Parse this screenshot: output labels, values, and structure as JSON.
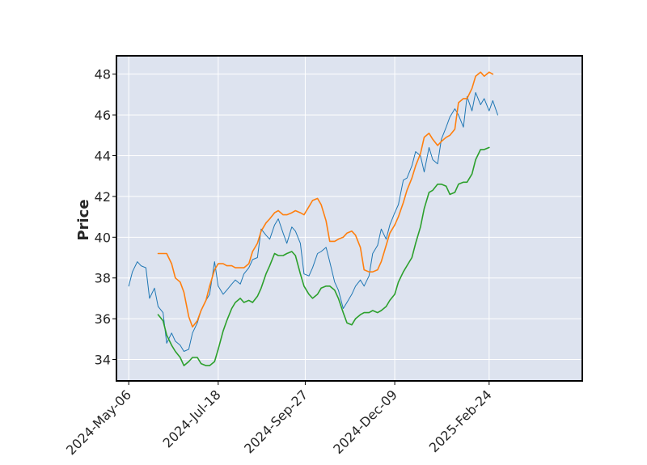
{
  "chart_data": {
    "type": "line",
    "title": "",
    "xlabel": "",
    "ylabel": "Price",
    "x_tick_labels": [
      "2024-May-06",
      "2024-Jul-18",
      "2024-Sep-27",
      "2024-Dec-09",
      "2025-Feb-24"
    ],
    "x_tick_dates": [
      "2024-05-06",
      "2024-07-18",
      "2024-09-27",
      "2024-12-09",
      "2025-02-24"
    ],
    "xlim": [
      "2024-04-26",
      "2025-05-11"
    ],
    "y_ticks": [
      34,
      36,
      38,
      40,
      42,
      44,
      46,
      48
    ],
    "ylim": [
      32.95,
      48.9
    ],
    "grid": true,
    "legend": "none",
    "colors": {
      "background": "#dde3ef",
      "grid": "#ffffff",
      "frame": "#000000",
      "close": "#1f77b4",
      "upper": "#ff7f0e",
      "lower": "#2ca02c"
    },
    "series": [
      {
        "color": "#1f77b4",
        "points": [
          [
            "2024-05-06",
            37.6
          ],
          [
            "2024-05-09",
            38.3
          ],
          [
            "2024-05-13",
            38.8
          ],
          [
            "2024-05-16",
            38.6
          ],
          [
            "2024-05-20",
            38.5
          ],
          [
            "2024-05-23",
            37.0
          ],
          [
            "2024-05-27",
            37.5
          ],
          [
            "2024-05-30",
            36.6
          ],
          [
            "2024-06-03",
            36.3
          ],
          [
            "2024-06-06",
            34.8
          ],
          [
            "2024-06-10",
            35.3
          ],
          [
            "2024-06-13",
            34.9
          ],
          [
            "2024-06-17",
            34.7
          ],
          [
            "2024-06-20",
            34.4
          ],
          [
            "2024-06-24",
            34.5
          ],
          [
            "2024-06-27",
            35.3
          ],
          [
            "2024-07-01",
            35.8
          ],
          [
            "2024-07-04",
            36.4
          ],
          [
            "2024-07-08",
            36.9
          ],
          [
            "2024-07-11",
            37.2
          ],
          [
            "2024-07-15",
            38.8
          ],
          [
            "2024-07-18",
            37.6
          ],
          [
            "2024-07-22",
            37.2
          ],
          [
            "2024-07-25",
            37.4
          ],
          [
            "2024-07-29",
            37.7
          ],
          [
            "2024-08-01",
            37.9
          ],
          [
            "2024-08-05",
            37.7
          ],
          [
            "2024-08-08",
            38.2
          ],
          [
            "2024-08-12",
            38.5
          ],
          [
            "2024-08-15",
            38.9
          ],
          [
            "2024-08-19",
            39.0
          ],
          [
            "2024-08-22",
            40.4
          ],
          [
            "2024-08-26",
            40.1
          ],
          [
            "2024-08-29",
            39.9
          ],
          [
            "2024-09-02",
            40.6
          ],
          [
            "2024-09-05",
            40.9
          ],
          [
            "2024-09-09",
            40.2
          ],
          [
            "2024-09-12",
            39.7
          ],
          [
            "2024-09-16",
            40.5
          ],
          [
            "2024-09-19",
            40.3
          ],
          [
            "2024-09-23",
            39.7
          ],
          [
            "2024-09-26",
            38.2
          ],
          [
            "2024-09-30",
            38.1
          ],
          [
            "2024-10-03",
            38.5
          ],
          [
            "2024-10-07",
            39.2
          ],
          [
            "2024-10-10",
            39.3
          ],
          [
            "2024-10-14",
            39.5
          ],
          [
            "2024-10-17",
            38.8
          ],
          [
            "2024-10-21",
            37.8
          ],
          [
            "2024-10-24",
            37.4
          ],
          [
            "2024-10-28",
            36.5
          ],
          [
            "2024-10-31",
            36.8
          ],
          [
            "2024-11-04",
            37.2
          ],
          [
            "2024-11-07",
            37.6
          ],
          [
            "2024-11-11",
            37.9
          ],
          [
            "2024-11-14",
            37.6
          ],
          [
            "2024-11-18",
            38.1
          ],
          [
            "2024-11-21",
            39.2
          ],
          [
            "2024-11-25",
            39.6
          ],
          [
            "2024-11-28",
            40.4
          ],
          [
            "2024-12-02",
            39.9
          ],
          [
            "2024-12-05",
            40.6
          ],
          [
            "2024-12-09",
            41.2
          ],
          [
            "2024-12-12",
            41.6
          ],
          [
            "2024-12-16",
            42.8
          ],
          [
            "2024-12-19",
            42.9
          ],
          [
            "2024-12-23",
            43.5
          ],
          [
            "2024-12-26",
            44.2
          ],
          [
            "2024-12-30",
            44.0
          ],
          [
            "2025-01-02",
            43.2
          ],
          [
            "2025-01-06",
            44.4
          ],
          [
            "2025-01-09",
            43.8
          ],
          [
            "2025-01-13",
            43.6
          ],
          [
            "2025-01-16",
            44.8
          ],
          [
            "2025-01-20",
            45.4
          ],
          [
            "2025-01-23",
            45.9
          ],
          [
            "2025-01-27",
            46.3
          ],
          [
            "2025-01-30",
            46.0
          ],
          [
            "2025-02-03",
            45.4
          ],
          [
            "2025-02-06",
            46.9
          ],
          [
            "2025-02-10",
            46.2
          ],
          [
            "2025-02-13",
            47.1
          ],
          [
            "2025-02-17",
            46.5
          ],
          [
            "2025-02-20",
            46.8
          ],
          [
            "2025-02-24",
            46.2
          ],
          [
            "2025-02-27",
            46.7
          ],
          [
            "2025-03-03",
            46.0
          ]
        ]
      },
      {
        "color": "#ff7f0e",
        "points": [
          [
            "2024-05-30",
            39.2
          ],
          [
            "2024-06-03",
            39.2
          ],
          [
            "2024-06-06",
            39.2
          ],
          [
            "2024-06-10",
            38.7
          ],
          [
            "2024-06-13",
            38.0
          ],
          [
            "2024-06-17",
            37.8
          ],
          [
            "2024-06-20",
            37.3
          ],
          [
            "2024-06-24",
            36.1
          ],
          [
            "2024-06-27",
            35.6
          ],
          [
            "2024-07-01",
            35.9
          ],
          [
            "2024-07-04",
            36.4
          ],
          [
            "2024-07-08",
            36.9
          ],
          [
            "2024-07-11",
            37.6
          ],
          [
            "2024-07-15",
            38.4
          ],
          [
            "2024-07-18",
            38.7
          ],
          [
            "2024-07-22",
            38.7
          ],
          [
            "2024-07-25",
            38.6
          ],
          [
            "2024-07-29",
            38.6
          ],
          [
            "2024-08-01",
            38.5
          ],
          [
            "2024-08-05",
            38.5
          ],
          [
            "2024-08-08",
            38.5
          ],
          [
            "2024-08-12",
            38.7
          ],
          [
            "2024-08-15",
            39.3
          ],
          [
            "2024-08-19",
            39.7
          ],
          [
            "2024-08-22",
            40.3
          ],
          [
            "2024-08-26",
            40.7
          ],
          [
            "2024-08-29",
            40.9
          ],
          [
            "2024-09-02",
            41.2
          ],
          [
            "2024-09-05",
            41.3
          ],
          [
            "2024-09-09",
            41.1
          ],
          [
            "2024-09-12",
            41.1
          ],
          [
            "2024-09-16",
            41.2
          ],
          [
            "2024-09-19",
            41.3
          ],
          [
            "2024-09-23",
            41.2
          ],
          [
            "2024-09-26",
            41.1
          ],
          [
            "2024-09-30",
            41.5
          ],
          [
            "2024-10-03",
            41.8
          ],
          [
            "2024-10-07",
            41.9
          ],
          [
            "2024-10-10",
            41.6
          ],
          [
            "2024-10-14",
            40.8
          ],
          [
            "2024-10-17",
            39.8
          ],
          [
            "2024-10-21",
            39.8
          ],
          [
            "2024-10-24",
            39.9
          ],
          [
            "2024-10-28",
            40.0
          ],
          [
            "2024-10-31",
            40.2
          ],
          [
            "2024-11-04",
            40.3
          ],
          [
            "2024-11-07",
            40.1
          ],
          [
            "2024-11-11",
            39.5
          ],
          [
            "2024-11-14",
            38.4
          ],
          [
            "2024-11-18",
            38.3
          ],
          [
            "2024-11-21",
            38.3
          ],
          [
            "2024-11-25",
            38.4
          ],
          [
            "2024-11-28",
            38.8
          ],
          [
            "2024-12-02",
            39.6
          ],
          [
            "2024-12-05",
            40.2
          ],
          [
            "2024-12-09",
            40.6
          ],
          [
            "2024-12-12",
            41.0
          ],
          [
            "2024-12-16",
            41.7
          ],
          [
            "2024-12-19",
            42.3
          ],
          [
            "2024-12-23",
            42.9
          ],
          [
            "2024-12-26",
            43.5
          ],
          [
            "2024-12-30",
            44.1
          ],
          [
            "2025-01-02",
            44.9
          ],
          [
            "2025-01-06",
            45.1
          ],
          [
            "2025-01-09",
            44.8
          ],
          [
            "2025-01-13",
            44.5
          ],
          [
            "2025-01-16",
            44.7
          ],
          [
            "2025-01-20",
            44.9
          ],
          [
            "2025-01-23",
            45.0
          ],
          [
            "2025-01-27",
            45.3
          ],
          [
            "2025-01-30",
            46.6
          ],
          [
            "2025-02-03",
            46.8
          ],
          [
            "2025-02-06",
            46.8
          ],
          [
            "2025-02-10",
            47.3
          ],
          [
            "2025-02-13",
            47.9
          ],
          [
            "2025-02-17",
            48.1
          ],
          [
            "2025-02-20",
            47.9
          ],
          [
            "2025-02-24",
            48.1
          ],
          [
            "2025-02-27",
            48.0
          ]
        ]
      },
      {
        "color": "#2ca02c",
        "points": [
          [
            "2024-05-30",
            36.2
          ],
          [
            "2024-06-03",
            35.9
          ],
          [
            "2024-06-06",
            35.2
          ],
          [
            "2024-06-10",
            34.7
          ],
          [
            "2024-06-13",
            34.4
          ],
          [
            "2024-06-17",
            34.1
          ],
          [
            "2024-06-20",
            33.7
          ],
          [
            "2024-06-24",
            33.9
          ],
          [
            "2024-06-27",
            34.1
          ],
          [
            "2024-07-01",
            34.1
          ],
          [
            "2024-07-04",
            33.8
          ],
          [
            "2024-07-08",
            33.7
          ],
          [
            "2024-07-11",
            33.7
          ],
          [
            "2024-07-15",
            33.9
          ],
          [
            "2024-07-18",
            34.5
          ],
          [
            "2024-07-22",
            35.4
          ],
          [
            "2024-07-25",
            35.9
          ],
          [
            "2024-07-29",
            36.5
          ],
          [
            "2024-08-01",
            36.8
          ],
          [
            "2024-08-05",
            37.0
          ],
          [
            "2024-08-08",
            36.8
          ],
          [
            "2024-08-12",
            36.9
          ],
          [
            "2024-08-15",
            36.8
          ],
          [
            "2024-08-19",
            37.1
          ],
          [
            "2024-08-22",
            37.5
          ],
          [
            "2024-08-26",
            38.2
          ],
          [
            "2024-08-29",
            38.6
          ],
          [
            "2024-09-02",
            39.2
          ],
          [
            "2024-09-05",
            39.1
          ],
          [
            "2024-09-09",
            39.1
          ],
          [
            "2024-09-12",
            39.2
          ],
          [
            "2024-09-16",
            39.3
          ],
          [
            "2024-09-19",
            39.1
          ],
          [
            "2024-09-23",
            38.2
          ],
          [
            "2024-09-26",
            37.6
          ],
          [
            "2024-09-30",
            37.2
          ],
          [
            "2024-10-03",
            37.0
          ],
          [
            "2024-10-07",
            37.2
          ],
          [
            "2024-10-10",
            37.5
          ],
          [
            "2024-10-14",
            37.6
          ],
          [
            "2024-10-17",
            37.6
          ],
          [
            "2024-10-21",
            37.4
          ],
          [
            "2024-10-24",
            37.0
          ],
          [
            "2024-10-28",
            36.3
          ],
          [
            "2024-10-31",
            35.8
          ],
          [
            "2024-11-04",
            35.7
          ],
          [
            "2024-11-07",
            36.0
          ],
          [
            "2024-11-11",
            36.2
          ],
          [
            "2024-11-14",
            36.3
          ],
          [
            "2024-11-18",
            36.3
          ],
          [
            "2024-11-21",
            36.4
          ],
          [
            "2024-11-25",
            36.3
          ],
          [
            "2024-11-28",
            36.4
          ],
          [
            "2024-12-02",
            36.6
          ],
          [
            "2024-12-05",
            36.9
          ],
          [
            "2024-12-09",
            37.2
          ],
          [
            "2024-12-12",
            37.8
          ],
          [
            "2024-12-16",
            38.3
          ],
          [
            "2024-12-19",
            38.6
          ],
          [
            "2024-12-23",
            39.0
          ],
          [
            "2024-12-26",
            39.7
          ],
          [
            "2024-12-30",
            40.5
          ],
          [
            "2025-01-02",
            41.4
          ],
          [
            "2025-01-06",
            42.2
          ],
          [
            "2025-01-09",
            42.3
          ],
          [
            "2025-01-13",
            42.6
          ],
          [
            "2025-01-16",
            42.6
          ],
          [
            "2025-01-20",
            42.5
          ],
          [
            "2025-01-23",
            42.1
          ],
          [
            "2025-01-27",
            42.2
          ],
          [
            "2025-01-30",
            42.6
          ],
          [
            "2025-02-03",
            42.7
          ],
          [
            "2025-02-06",
            42.7
          ],
          [
            "2025-02-10",
            43.1
          ],
          [
            "2025-02-13",
            43.8
          ],
          [
            "2025-02-17",
            44.3
          ],
          [
            "2025-02-20",
            44.3
          ],
          [
            "2025-02-24",
            44.4
          ]
        ]
      }
    ]
  }
}
